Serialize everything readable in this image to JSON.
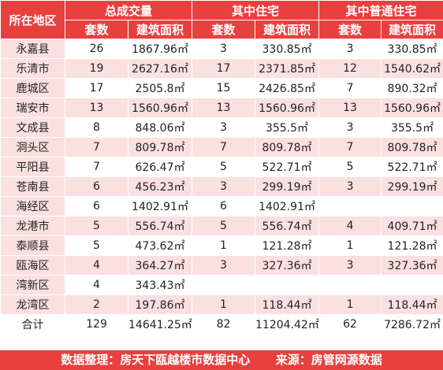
{
  "header": {
    "region": "所在地区",
    "groups": [
      "总成交量",
      "其中住宅",
      "其中普通住宅"
    ],
    "sub": [
      "套数",
      "建筑面积",
      "套数",
      "建筑面积",
      "套数",
      "建筑面积"
    ]
  },
  "rows": [
    {
      "region": "永嘉县",
      "c1": "26",
      "c2": "1867.96㎡",
      "c3": "3",
      "c4": "330.85㎡",
      "c5": "3",
      "c6": "330.85㎡"
    },
    {
      "region": "乐清市",
      "c1": "19",
      "c2": "2627.16㎡",
      "c3": "17",
      "c4": "2371.85㎡",
      "c5": "12",
      "c6": "1540.62㎡"
    },
    {
      "region": "鹿城区",
      "c1": "17",
      "c2": "2505.8㎡",
      "c3": "15",
      "c4": "2426.85㎡",
      "c5": "7",
      "c6": "890.32㎡"
    },
    {
      "region": "瑞安市",
      "c1": "13",
      "c2": "1560.96㎡",
      "c3": "13",
      "c4": "1560.96㎡",
      "c5": "13",
      "c6": "1560.96㎡"
    },
    {
      "region": "文成县",
      "c1": "8",
      "c2": "848.06㎡",
      "c3": "3",
      "c4": "355.5㎡",
      "c5": "3",
      "c6": "355.5㎡"
    },
    {
      "region": "洞头区",
      "c1": "7",
      "c2": "809.78㎡",
      "c3": "7",
      "c4": "809.78㎡",
      "c5": "7",
      "c6": "809.78㎡"
    },
    {
      "region": "平阳县",
      "c1": "7",
      "c2": "626.47㎡",
      "c3": "5",
      "c4": "522.71㎡",
      "c5": "5",
      "c6": "522.71㎡"
    },
    {
      "region": "苍南县",
      "c1": "6",
      "c2": "456.23㎡",
      "c3": "3",
      "c4": "299.19㎡",
      "c5": "3",
      "c6": "299.19㎡"
    },
    {
      "region": "海经区",
      "c1": "6",
      "c2": "1402.91㎡",
      "c3": "6",
      "c4": "1402.91㎡",
      "c5": "",
      "c6": ""
    },
    {
      "region": "龙港市",
      "c1": "5",
      "c2": "556.74㎡",
      "c3": "5",
      "c4": "556.74㎡",
      "c5": "4",
      "c6": "409.71㎡"
    },
    {
      "region": "泰顺县",
      "c1": "5",
      "c2": "473.62㎡",
      "c3": "1",
      "c4": "121.28㎡",
      "c5": "1",
      "c6": "121.28㎡"
    },
    {
      "region": "瓯海区",
      "c1": "4",
      "c2": "364.27㎡",
      "c3": "3",
      "c4": "327.36㎡",
      "c5": "3",
      "c6": "327.36㎡"
    },
    {
      "region": "湾新区",
      "c1": "4",
      "c2": "343.43㎡",
      "c3": "",
      "c4": "",
      "c5": "",
      "c6": ""
    },
    {
      "region": "龙湾区",
      "c1": "2",
      "c2": "197.86㎡",
      "c3": "1",
      "c4": "118.44㎡",
      "c5": "1",
      "c6": "118.44㎡"
    }
  ],
  "total": {
    "region": "合计",
    "c1": "129",
    "c2": "14641.25㎡",
    "c3": "82",
    "c4": "11204.42㎡",
    "c5": "62",
    "c6": "7286.72㎡"
  },
  "footer": {
    "left": "数据整理：房天下瓯越楼市数据中心",
    "right": "来源：房管网源数据"
  },
  "colors": {
    "header_bg": "#e8403f",
    "stripe": "#fbe0e0"
  }
}
